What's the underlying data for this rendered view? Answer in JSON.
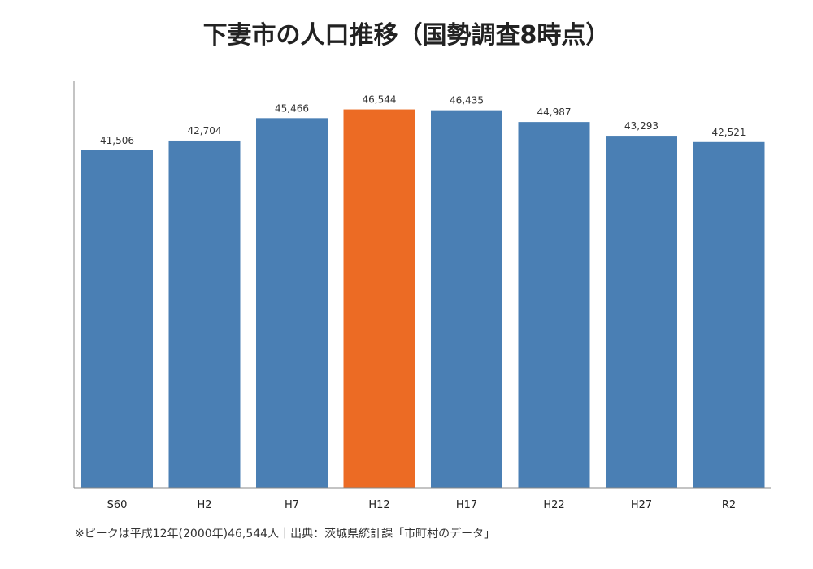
{
  "title": "下妻市の人口推移（国勢調査8時点）",
  "footnote": "※ピークは平成12年(2000年)46,544人｜出典：茨城県統計課「市町村のデータ」",
  "colors": {
    "bar": "#4a7fb4",
    "highlight": "#ec6b24",
    "axis": "#888888"
  },
  "chart_data": {
    "type": "bar",
    "title": "下妻市の人口推移（国勢調査8時点）",
    "xlabel": "",
    "ylabel": "",
    "categories": [
      "S60",
      "H2",
      "H7",
      "H12",
      "H17",
      "H22",
      "H27",
      "R2"
    ],
    "values": [
      41506,
      42704,
      45466,
      46544,
      46435,
      44987,
      43293,
      42521
    ],
    "value_labels": [
      "41,506",
      "42,704",
      "45,466",
      "46,544",
      "46,435",
      "44,987",
      "43,293",
      "42,521"
    ],
    "highlight_category": "H12",
    "ylim": [
      0,
      50000
    ],
    "grid": false,
    "legend": "none"
  }
}
